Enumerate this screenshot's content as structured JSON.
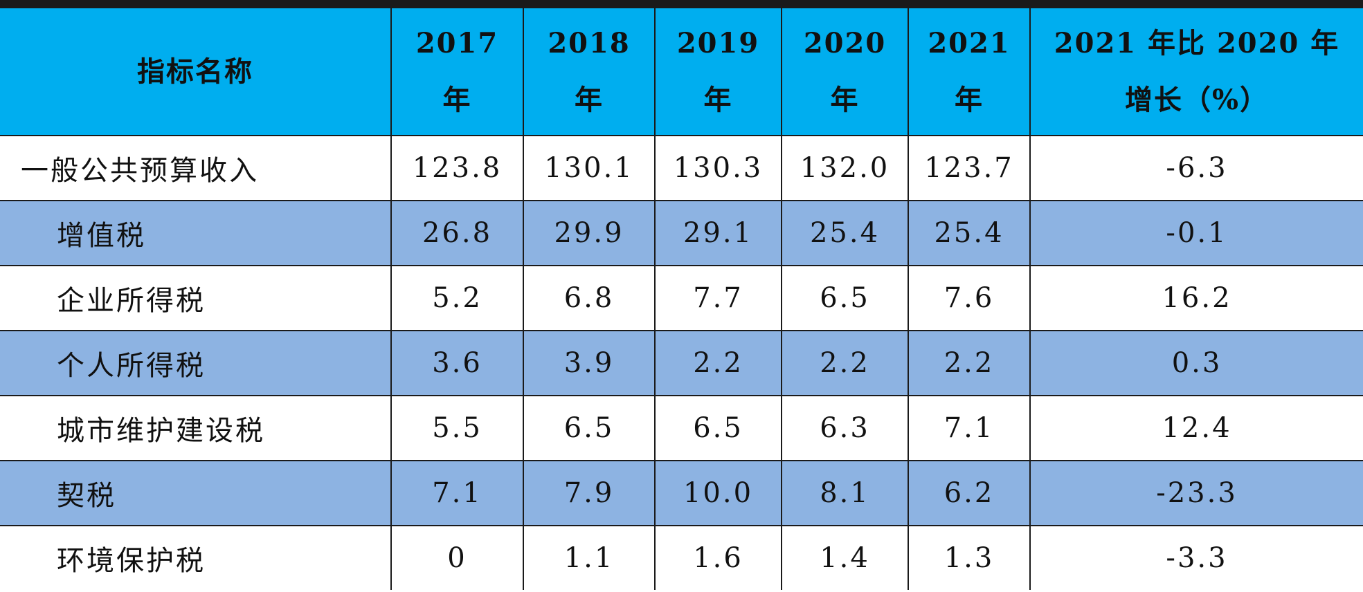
{
  "chart_data": {
    "type": "table",
    "header": {
      "name": "指标名称",
      "years": [
        {
          "line1": "2017",
          "line2": "年"
        },
        {
          "line1": "2018",
          "line2": "年"
        },
        {
          "line1": "2019",
          "line2": "年"
        },
        {
          "line1": "2020",
          "line2": "年"
        },
        {
          "line1": "2021",
          "line2": "年"
        }
      ],
      "growth": {
        "line1": "2021 年比 2020 年",
        "line2": "增长（%）"
      }
    },
    "rows": [
      {
        "name": "一般公共预算收入",
        "values": [
          "123.8",
          "130.1",
          "130.3",
          "132.0",
          "123.7"
        ],
        "growth": "-6.3"
      },
      {
        "name": "增值税",
        "values": [
          "26.8",
          "29.9",
          "29.1",
          "25.4",
          "25.4"
        ],
        "growth": "-0.1"
      },
      {
        "name": "企业所得税",
        "values": [
          "5.2",
          "6.8",
          "7.7",
          "6.5",
          "7.6"
        ],
        "growth": "16.2"
      },
      {
        "name": "个人所得税",
        "values": [
          "3.6",
          "3.9",
          "2.2",
          "2.2",
          "2.2"
        ],
        "growth": "0.3"
      },
      {
        "name": "城市维护建设税",
        "values": [
          "5.5",
          "6.5",
          "6.5",
          "6.3",
          "7.1"
        ],
        "growth": "12.4"
      },
      {
        "name": "契税",
        "values": [
          "7.1",
          "7.9",
          "10.0",
          "8.1",
          "6.2"
        ],
        "growth": "-23.3"
      },
      {
        "name": "环境保护税",
        "values": [
          "0",
          "1.1",
          "1.6",
          "1.4",
          "1.3"
        ],
        "growth": "-3.3"
      }
    ],
    "colors": {
      "header_bg": "#00AEEF",
      "alt_row_bg": "#8DB3E2",
      "row_bg": "#FFFFFF",
      "border": "#1A1A1A"
    }
  }
}
